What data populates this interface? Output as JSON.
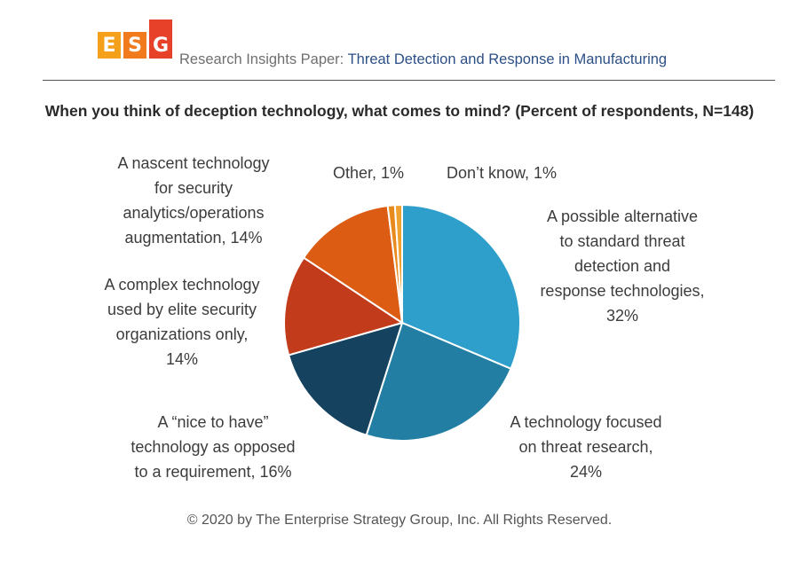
{
  "header": {
    "logo_letters": [
      "E",
      "S",
      "G"
    ],
    "logo_colors": [
      "#f5a01a",
      "#f07a1c",
      "#e8412a"
    ],
    "prefix": "Research Insights Paper:",
    "topic": "Threat Detection and Response in Manufacturing"
  },
  "chart_data": {
    "type": "pie",
    "title": "When you think of deception technology, what comes to mind? (Percent of respondents, N=148)",
    "slices": [
      {
        "label": "A possible alternative to standard threat detection and response technologies",
        "value": 32,
        "display": [
          "A possible alternative",
          "to standard threat",
          "detection and",
          "response technologies,",
          "32%"
        ],
        "color": "#2e9fcb"
      },
      {
        "label": "A technology focused on threat research",
        "value": 24,
        "display": [
          "A technology focused",
          "on threat research,",
          "24%"
        ],
        "color": "#227fa3"
      },
      {
        "label": "A “nice to have” technology as opposed to a requirement",
        "value": 16,
        "display": [
          "A “nice to have”",
          "technology as opposed",
          "to a requirement, 16%"
        ],
        "color": "#15435f"
      },
      {
        "label": "A complex technology used by elite security organizations only",
        "value": 14,
        "display": [
          "A complex technology",
          "used by elite security",
          "organizations only,",
          "14%"
        ],
        "color": "#c23b1a"
      },
      {
        "label": "A nascent technology for security analytics/operations augmentation",
        "value": 14,
        "display": [
          "A nascent technology",
          "for security",
          "analytics/operations",
          "augmentation, 14%"
        ],
        "color": "#dc5c13"
      },
      {
        "label": "Other",
        "value": 1,
        "display": [
          "Other, 1%"
        ],
        "color": "#e98a1f"
      },
      {
        "label": "Don’t know",
        "value": 1,
        "display": [
          "Don’t know, 1%"
        ],
        "color": "#efa230"
      }
    ]
  },
  "footer": "© 2020 by The Enterprise Strategy Group, Inc. All Rights Reserved."
}
